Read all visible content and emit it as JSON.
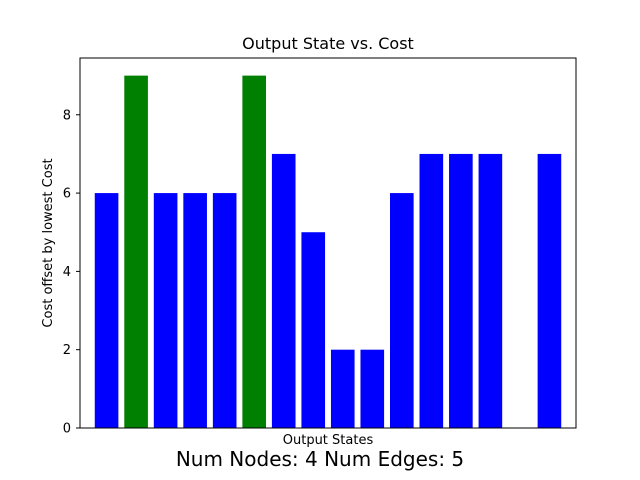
{
  "chart_data": {
    "type": "bar",
    "title": "Output State vs. Cost",
    "xlabel": "Output States",
    "ylabel": "Cost offset by lowest Cost",
    "ylim": [
      0,
      9.45
    ],
    "yticks": [
      0,
      2,
      4,
      6,
      8
    ],
    "x": [
      0,
      1,
      2,
      3,
      4,
      5,
      6,
      7,
      8,
      9,
      10,
      11,
      12,
      13,
      15
    ],
    "values": [
      6,
      9,
      6,
      6,
      6,
      9,
      7,
      5,
      2,
      2,
      6,
      7,
      7,
      7,
      7
    ],
    "highlight": [
      false,
      true,
      false,
      false,
      false,
      true,
      false,
      false,
      false,
      false,
      false,
      false,
      false,
      false,
      false
    ],
    "colors": {
      "default": "#0000ff",
      "highlight": "#008000"
    },
    "grid": false,
    "footer": "Num Nodes: 4 Num Edges: 5"
  }
}
